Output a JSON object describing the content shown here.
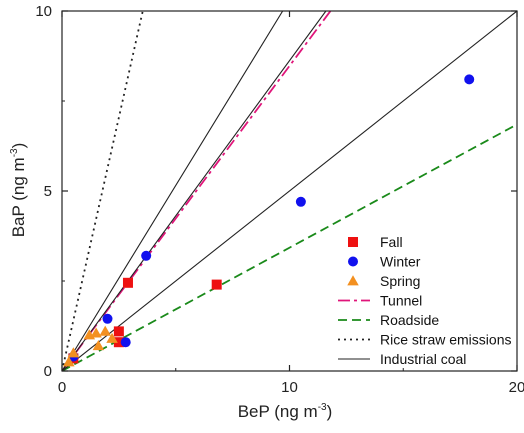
{
  "chart_data": {
    "type": "scatter",
    "xlabel": "BeP (ng m",
    "xlabel_sup": "-3",
    "xlabel_end": ")",
    "ylabel": "BaP (ng m",
    "ylabel_sup": "-3",
    "ylabel_end": ")",
    "xlim": [
      0,
      20
    ],
    "ylim": [
      0,
      10
    ],
    "xticks": [
      0,
      10,
      20
    ],
    "yticks": [
      0,
      5,
      10
    ],
    "grid": false,
    "legend_position": "bottom-right",
    "series": [
      {
        "name": "Fall",
        "kind": "points",
        "marker": "square",
        "color": "#ee1111",
        "points": [
          [
            0.5,
            0.35
          ],
          [
            2.5,
            1.1
          ],
          [
            2.5,
            0.8
          ],
          [
            2.9,
            2.45
          ],
          [
            6.8,
            2.4
          ]
        ]
      },
      {
        "name": "Winter",
        "kind": "points",
        "marker": "circle",
        "color": "#1111ee",
        "points": [
          [
            0.5,
            0.4
          ],
          [
            2.0,
            1.45
          ],
          [
            2.8,
            0.8
          ],
          [
            3.7,
            3.2
          ],
          [
            10.5,
            4.7
          ],
          [
            17.9,
            8.1
          ]
        ]
      },
      {
        "name": "Spring",
        "kind": "points",
        "marker": "triangle",
        "color": "#f39020",
        "points": [
          [
            0.3,
            0.25
          ],
          [
            0.5,
            0.5
          ],
          [
            1.2,
            1.0
          ],
          [
            1.5,
            1.05
          ],
          [
            1.6,
            0.7
          ],
          [
            1.9,
            1.1
          ],
          [
            2.2,
            0.9
          ]
        ]
      },
      {
        "name": "Tunnel",
        "kind": "line",
        "style": "dashdot",
        "color": "#e0157a",
        "x": [
          0,
          11.8
        ],
        "y": [
          0,
          10
        ]
      },
      {
        "name": "Roadside",
        "kind": "line",
        "style": "dashed",
        "color": "#1a8a1a",
        "x": [
          0,
          20
        ],
        "y": [
          0,
          6.85
        ]
      },
      {
        "name": "Rice straw emissions",
        "kind": "line",
        "style": "dotted",
        "color": "#222222",
        "x": [
          0,
          3.55
        ],
        "y": [
          0,
          10
        ]
      },
      {
        "name": "Industrial coal",
        "kind": "line",
        "style": "solid",
        "color": "#222222",
        "lines": [
          {
            "x": [
              0,
              20
            ],
            "y": [
              0,
              10
            ]
          },
          {
            "x": [
              0,
              11.6
            ],
            "y": [
              0,
              10
            ]
          },
          {
            "x": [
              0,
              9.7
            ],
            "y": [
              0,
              10
            ]
          }
        ]
      }
    ]
  }
}
